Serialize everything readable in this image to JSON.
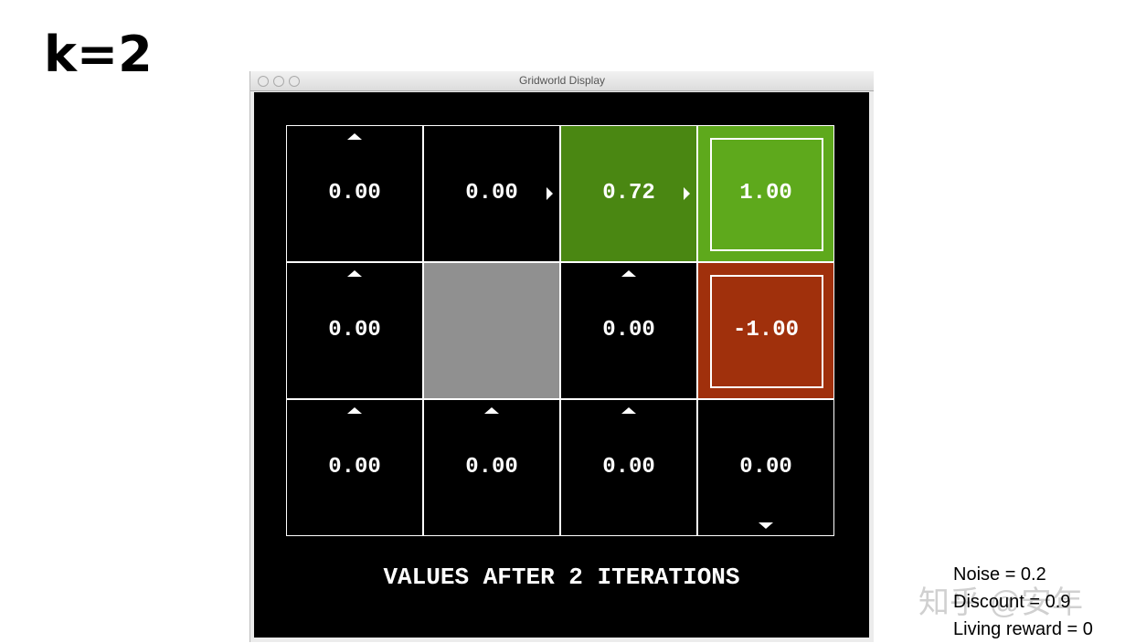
{
  "slide_label": "k=2",
  "window": {
    "title": "Gridworld Display"
  },
  "grid": {
    "rows": [
      [
        {
          "value": "0.00",
          "arrow": "up",
          "color": "#000000"
        },
        {
          "value": "0.00",
          "arrow": "right",
          "color": "#000000"
        },
        {
          "value": "0.72",
          "arrow": "right",
          "color": "#4a8712"
        },
        {
          "value": "1.00",
          "arrow": null,
          "terminal": true,
          "color": "#5ea91c"
        }
      ],
      [
        {
          "value": "0.00",
          "arrow": "up",
          "color": "#000000"
        },
        {
          "wall": true,
          "color": "#909090"
        },
        {
          "value": "0.00",
          "arrow": "up",
          "color": "#000000"
        },
        {
          "value": "-1.00",
          "arrow": null,
          "terminal": true,
          "color": "#a0300c"
        }
      ],
      [
        {
          "value": "0.00",
          "arrow": "up",
          "color": "#000000"
        },
        {
          "value": "0.00",
          "arrow": "up",
          "color": "#000000"
        },
        {
          "value": "0.00",
          "arrow": "up",
          "color": "#000000"
        },
        {
          "value": "0.00",
          "arrow": "down",
          "color": "#000000"
        }
      ]
    ]
  },
  "caption": "VALUES AFTER 2 ITERATIONS",
  "params": [
    "Noise = 0.2",
    "Discount = 0.9",
    "Living reward = 0"
  ],
  "watermark": "知乎 @安年"
}
